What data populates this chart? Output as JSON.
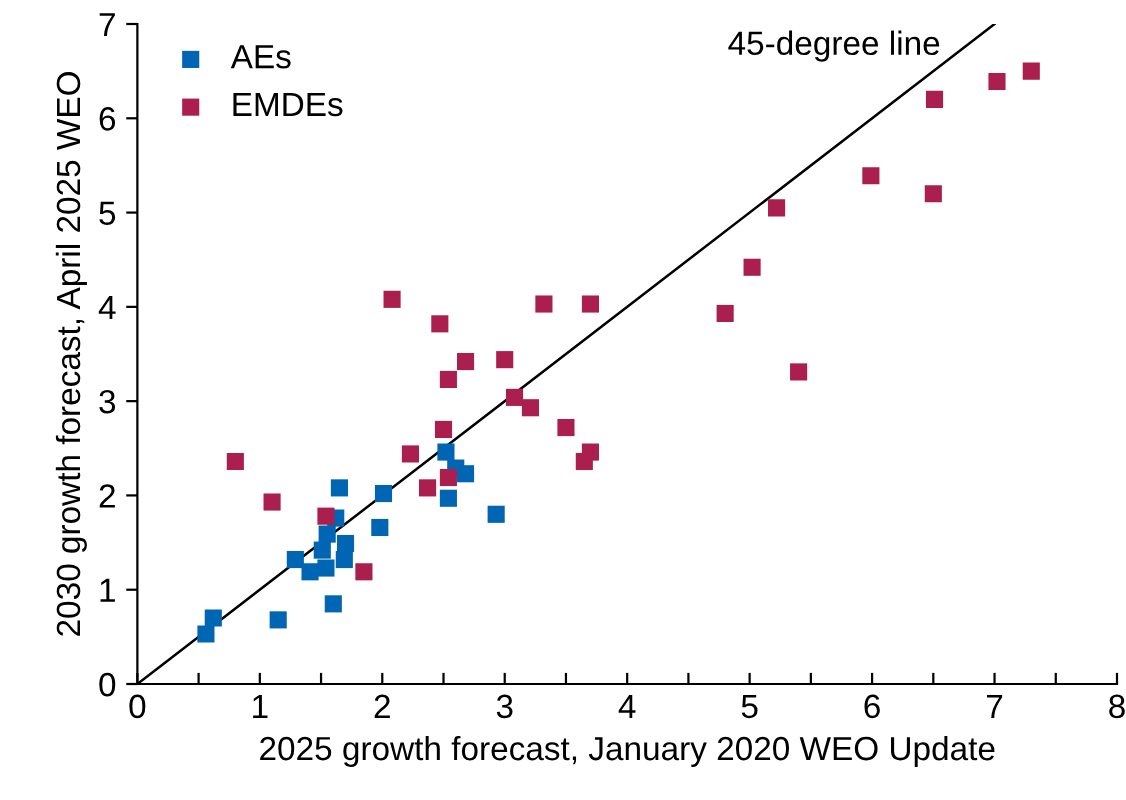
{
  "chart_data": {
    "type": "scatter",
    "xlabel": "2025 growth forecast, January 2020 WEO Update",
    "ylabel": "2030 growth forecast, April 2025 WEO",
    "xlim": [
      0,
      8
    ],
    "ylim": [
      0,
      7
    ],
    "xticks": [
      0,
      {
        "value": 0.5,
        "label": null
      },
      1,
      {
        "value": 1.5,
        "label": null
      },
      2,
      {
        "value": 2.5,
        "label": null
      },
      3,
      {
        "value": 3.5,
        "label": null
      },
      4,
      {
        "value": 4.5,
        "label": null
      },
      5,
      {
        "value": 5.5,
        "label": null
      },
      6,
      {
        "value": 6.5,
        "label": null
      },
      7,
      {
        "value": 7.5,
        "label": null
      },
      8
    ],
    "yticks": [
      0,
      1,
      2,
      3,
      4,
      5,
      6,
      7
    ],
    "grid": false,
    "legend": "top left",
    "marker": "square",
    "series": [
      {
        "name": "AEs",
        "color": "#0065b3",
        "x": [
          0.56,
          0.62,
          1.15,
          1.6,
          1.29,
          1.41,
          1.54,
          1.51,
          1.69,
          1.7,
          1.55,
          1.62,
          1.65,
          1.98,
          2.01,
          2.52,
          2.6,
          2.68,
          2.54,
          2.93
        ],
        "values": [
          0.53,
          0.7,
          0.68,
          0.85,
          1.32,
          1.19,
          1.23,
          1.42,
          1.32,
          1.49,
          1.59,
          1.76,
          2.08,
          1.66,
          2.02,
          2.46,
          2.29,
          2.23,
          1.97,
          1.8
        ]
      },
      {
        "name": "EMDEs",
        "color": "#ab1f4f",
        "x": [
          0.8,
          1.1,
          1.54,
          1.85,
          2.08,
          2.47,
          2.68,
          2.54,
          3.0,
          3.32,
          3.7,
          3.08,
          3.21,
          3.5,
          3.7,
          3.65,
          2.5,
          2.23,
          2.37,
          2.54,
          4.8,
          5.02,
          5.4,
          5.22,
          5.99,
          6.5,
          6.51,
          7.02,
          7.3
        ],
        "values": [
          2.36,
          1.93,
          1.78,
          1.19,
          4.08,
          3.82,
          3.42,
          3.23,
          3.44,
          4.03,
          4.03,
          3.04,
          2.93,
          2.72,
          2.46,
          2.36,
          2.7,
          2.44,
          2.08,
          2.19,
          3.93,
          4.42,
          3.31,
          5.05,
          5.39,
          5.2,
          6.2,
          6.39,
          6.5
        ]
      },
      {
        "type": "line",
        "color": "#000000",
        "x": [
          0,
          7
        ],
        "values": [
          0,
          7
        ],
        "marker": "none"
      }
    ],
    "annotations": [
      "45-degree line"
    ]
  }
}
